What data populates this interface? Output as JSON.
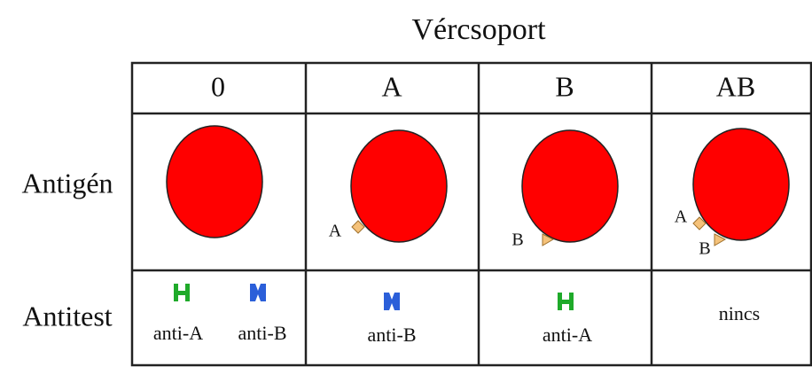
{
  "title": "Vércsoport",
  "columns": [
    "0",
    "A",
    "B",
    "AB"
  ],
  "rows": [
    {
      "label": "Antigén"
    },
    {
      "label": "Antitest"
    }
  ],
  "antigens": [
    [],
    [
      "A"
    ],
    [
      "B"
    ],
    [
      "A",
      "B"
    ]
  ],
  "antibodies": [
    [
      "anti-A",
      "anti-B"
    ],
    [
      "anti-B"
    ],
    [
      "anti-A"
    ],
    [
      "nincs"
    ]
  ]
}
